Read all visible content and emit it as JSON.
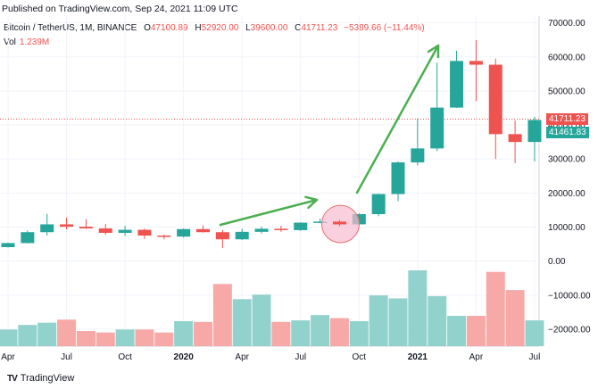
{
  "header": {
    "published_text": "Published on TradingView.com, Sep 24, 2021 11:09 UTC"
  },
  "legend": {
    "symbol": "Bitcoin / TetherUS, 1M, BINANCE",
    "open_key": "O",
    "open_val": "47100.89",
    "high_key": "H",
    "high_val": "52920.00",
    "low_key": "L",
    "low_val": "39600.00",
    "close_key": "C",
    "close_val": "41711.23",
    "change": "−5389.66 (−11.44%)"
  },
  "volume": {
    "label": "Vol",
    "value": "1.239M"
  },
  "brand": {
    "name": "TradingView",
    "logo": "TV"
  },
  "price_tags": {
    "last": "41711.23",
    "current": "41461.83"
  },
  "colors": {
    "up": "#26a69a",
    "down": "#ef5350",
    "up_vol": "#92d2cc",
    "down_vol": "#f7a9a7",
    "arrow": "#4caf50",
    "circle_fill": "#f8bbd0",
    "circle_stroke": "#e57373"
  },
  "chart_data": {
    "type": "candlestick",
    "interval": "1M",
    "price_axis_ticks": [
      "70000.00",
      "60000.00",
      "50000.00",
      "40000.00",
      "30000.00",
      "20000.00",
      "10000.00",
      "0.00",
      "−10000.00",
      "−20000.00"
    ],
    "price_axis_values": [
      70000,
      60000,
      50000,
      40000,
      30000,
      20000,
      10000,
      0,
      -10000,
      -20000
    ],
    "time_axis_labels": [
      "Apr",
      "Jul",
      "Oct",
      "2020",
      "Apr",
      "Jul",
      "Oct",
      "2021",
      "Apr",
      "Jul"
    ],
    "time_axis_label_index": [
      0,
      3,
      6,
      9,
      12,
      15,
      18,
      21,
      24,
      27
    ],
    "candles": [
      {
        "o": 4100,
        "h": 5400,
        "l": 4000,
        "c": 5300
      },
      {
        "o": 5300,
        "h": 9000,
        "l": 5200,
        "c": 8500
      },
      {
        "o": 8500,
        "h": 13900,
        "l": 7500,
        "c": 10800
      },
      {
        "o": 10800,
        "h": 12800,
        "l": 9300,
        "c": 10100
      },
      {
        "o": 10100,
        "h": 12300,
        "l": 9500,
        "c": 9600
      },
      {
        "o": 9600,
        "h": 10900,
        "l": 7700,
        "c": 8300
      },
      {
        "o": 8300,
        "h": 10400,
        "l": 7400,
        "c": 9200
      },
      {
        "o": 9200,
        "h": 9500,
        "l": 6500,
        "c": 7500
      },
      {
        "o": 7500,
        "h": 7800,
        "l": 6400,
        "c": 7200
      },
      {
        "o": 7200,
        "h": 9600,
        "l": 6900,
        "c": 9400
      },
      {
        "o": 9400,
        "h": 10500,
        "l": 8400,
        "c": 8500
      },
      {
        "o": 8500,
        "h": 9200,
        "l": 3800,
        "c": 6400
      },
      {
        "o": 6400,
        "h": 9500,
        "l": 6200,
        "c": 8600
      },
      {
        "o": 8600,
        "h": 10100,
        "l": 8100,
        "c": 9500
      },
      {
        "o": 9500,
        "h": 10400,
        "l": 8600,
        "c": 9100
      },
      {
        "o": 9100,
        "h": 11400,
        "l": 8900,
        "c": 11300
      },
      {
        "o": 11300,
        "h": 12500,
        "l": 11100,
        "c": 11600
      },
      {
        "o": 11600,
        "h": 12100,
        "l": 10300,
        "c": 10800
      },
      {
        "o": 10800,
        "h": 14000,
        "l": 10400,
        "c": 13800
      },
      {
        "o": 13800,
        "h": 19800,
        "l": 13200,
        "c": 19700
      },
      {
        "o": 19700,
        "h": 29300,
        "l": 17600,
        "c": 29000
      },
      {
        "o": 29000,
        "h": 41900,
        "l": 28100,
        "c": 33100
      },
      {
        "o": 33100,
        "h": 58300,
        "l": 32300,
        "c": 45100
      },
      {
        "o": 45100,
        "h": 61800,
        "l": 45000,
        "c": 58800
      },
      {
        "o": 58800,
        "h": 64900,
        "l": 47000,
        "c": 57700
      },
      {
        "o": 57700,
        "h": 59500,
        "l": 30000,
        "c": 37300
      },
      {
        "o": 37300,
        "h": 41300,
        "l": 28800,
        "c": 35000
      },
      {
        "o": 35000,
        "h": 42400,
        "l": 29300,
        "c": 41461.83
      }
    ],
    "volume_relative": [
      0.22,
      0.28,
      0.31,
      0.35,
      0.2,
      0.18,
      0.22,
      0.22,
      0.18,
      0.33,
      0.32,
      0.82,
      0.62,
      0.68,
      0.32,
      0.34,
      0.41,
      0.37,
      0.33,
      0.67,
      0.63,
      1.0,
      0.66,
      0.4,
      0.4,
      0.98,
      0.74,
      0.34
    ]
  }
}
